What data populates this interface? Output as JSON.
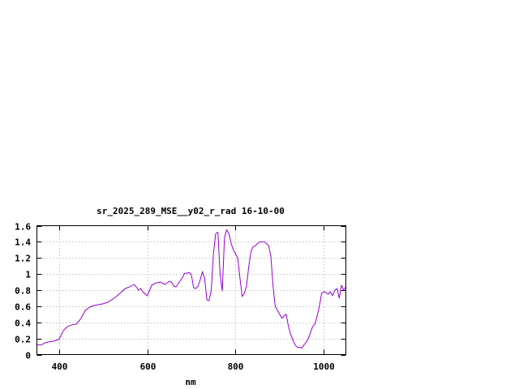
{
  "chart_data": {
    "type": "line",
    "title": "sr_2025_289_MSE__y02_r_rad 16-10-00",
    "xlabel": "nm",
    "ylabel": "",
    "xlim": [
      350,
      1050
    ],
    "ylim": [
      0,
      1.6
    ],
    "x_ticks": [
      400,
      600,
      800,
      1000
    ],
    "x_tick_labels": [
      "400",
      "600",
      "800",
      "1000"
    ],
    "y_ticks": [
      0,
      0.2,
      0.4,
      0.6,
      0.8,
      1,
      1.2,
      1.4,
      1.6
    ],
    "y_tick_labels": [
      "0",
      "0.2",
      "0.4",
      "0.6",
      "0.8",
      "1",
      "1.2",
      "1.4",
      "1.6"
    ],
    "grid": true,
    "series": [
      {
        "color": "#9400d3",
        "x": [
          350,
          360,
          370,
          380,
          390,
          400,
          405,
          410,
          420,
          430,
          440,
          450,
          460,
          470,
          480,
          490,
          500,
          510,
          520,
          530,
          540,
          550,
          560,
          570,
          575,
          580,
          585,
          590,
          600,
          610,
          620,
          630,
          640,
          650,
          655,
          660,
          665,
          670,
          680,
          685,
          690,
          695,
          700,
          705,
          710,
          715,
          720,
          725,
          730,
          735,
          740,
          745,
          750,
          755,
          760,
          765,
          770,
          775,
          780,
          785,
          790,
          795,
          800,
          805,
          810,
          815,
          820,
          825,
          830,
          835,
          840,
          845,
          850,
          855,
          860,
          865,
          870,
          875,
          880,
          885,
          890,
          895,
          900,
          905,
          910,
          915,
          920,
          925,
          930,
          935,
          940,
          945,
          950,
          955,
          960,
          965,
          970,
          975,
          980,
          985,
          990,
          995,
          1000,
          1005,
          1010,
          1015,
          1020,
          1025,
          1030,
          1035,
          1040,
          1045,
          1050
        ],
        "y": [
          0.12,
          0.12,
          0.15,
          0.16,
          0.17,
          0.19,
          0.24,
          0.3,
          0.35,
          0.37,
          0.38,
          0.45,
          0.55,
          0.59,
          0.61,
          0.62,
          0.63,
          0.65,
          0.68,
          0.72,
          0.77,
          0.82,
          0.84,
          0.87,
          0.84,
          0.8,
          0.82,
          0.78,
          0.73,
          0.86,
          0.89,
          0.9,
          0.87,
          0.91,
          0.9,
          0.85,
          0.84,
          0.88,
          0.96,
          1.01,
          1.01,
          1.02,
          0.99,
          0.83,
          0.82,
          0.85,
          0.93,
          1.03,
          0.95,
          0.68,
          0.67,
          0.8,
          1.25,
          1.5,
          1.52,
          1.0,
          0.79,
          1.45,
          1.55,
          1.5,
          1.38,
          1.3,
          1.25,
          1.2,
          0.95,
          0.72,
          0.76,
          0.85,
          1.1,
          1.28,
          1.34,
          1.35,
          1.38,
          1.4,
          1.4,
          1.4,
          1.38,
          1.35,
          1.22,
          0.85,
          0.6,
          0.55,
          0.5,
          0.45,
          0.48,
          0.5,
          0.35,
          0.25,
          0.18,
          0.12,
          0.09,
          0.09,
          0.08,
          0.12,
          0.15,
          0.2,
          0.28,
          0.35,
          0.38,
          0.48,
          0.6,
          0.76,
          0.78,
          0.77,
          0.75,
          0.78,
          0.73,
          0.8,
          0.82,
          0.7,
          0.86,
          0.8,
          0.84
        ]
      }
    ]
  }
}
